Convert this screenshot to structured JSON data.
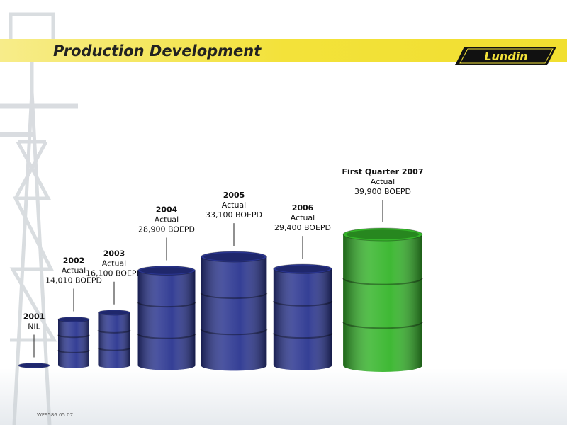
{
  "header": {
    "title": "Production Development",
    "logo": "Lundin"
  },
  "footer": "WF9586 05.07",
  "chart_data": {
    "type": "barrel",
    "categories": [
      "2001",
      "2002",
      "2003",
      "2004",
      "2005",
      "2006",
      "First Quarter 2007"
    ],
    "sublabels": [
      null,
      "Actual",
      "Actual",
      "Actual",
      "Actual",
      "Actual",
      "Actual"
    ],
    "values": [
      0,
      14010,
      16100,
      28900,
      33100,
      29400,
      39900
    ],
    "value_labels": [
      "NIL",
      "14,010 BOEPD",
      "16,100 BOEPD",
      "28,900 BOEPD",
      "33,100 BOEPD",
      "29,400 BOEPD",
      "39,900 BOEPD"
    ],
    "colors": [
      "#2a3590",
      "#2a3590",
      "#2a3590",
      "#2a3590",
      "#2a3590",
      "#2a3590",
      "#35b52a"
    ]
  }
}
